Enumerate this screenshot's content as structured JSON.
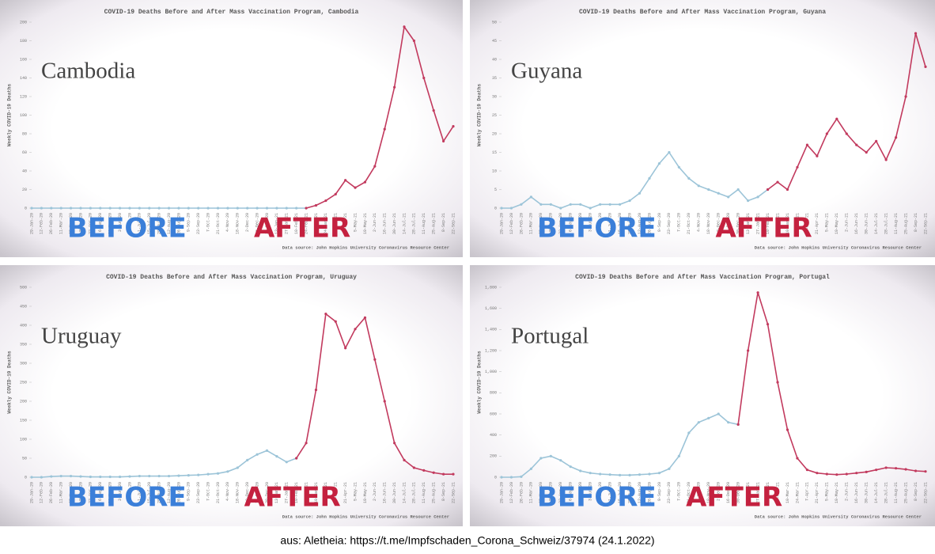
{
  "chart_data": [
    {
      "type": "line",
      "title": "COVID-19 Deaths Before and After Mass Vaccination Program, Cambodia",
      "label": "Cambodia",
      "y_label": "Weekly COVID-19 Deaths",
      "source": "Data source: John Hopkins University Coronavirus Resource Center",
      "annotations": [
        {
          "text": "BEFORE",
          "color": "#3b7fd9"
        },
        {
          "text": "AFTER",
          "color": "#c4213f"
        }
      ],
      "categories": [
        "29-Jan-20",
        "12-Feb-20",
        "26-Feb-20",
        "11-Mar-20",
        "25-Mar-20",
        "8-Apr-20",
        "22-Apr-20",
        "6-May-20",
        "20-May-20",
        "3-Jun-20",
        "17-Jun-20",
        "1-Jul-20",
        "15-Jul-20",
        "29-Jul-20",
        "12-Aug-20",
        "26-Aug-20",
        "9-Sep-20",
        "23-Sep-20",
        "7-Oct-20",
        "21-Oct-20",
        "4-Nov-20",
        "18-Nov-20",
        "2-Dec-20",
        "16-Dec-20",
        "30-Dec-20",
        "13-Jan-21",
        "27-Jan-21",
        "10-Feb-21",
        "24-Feb-21",
        "10-Mar-21",
        "24-Mar-21",
        "7-Apr-21",
        "21-Apr-21",
        "5-May-21",
        "19-May-21",
        "2-Jun-21",
        "16-Jun-21",
        "30-Jun-21",
        "14-Jul-21",
        "28-Jul-21",
        "11-Aug-21",
        "25-Aug-21",
        "8-Sep-21",
        "22-Sep-21"
      ],
      "series": [
        {
          "color": "#9cc4d8",
          "values": [
            0,
            0,
            0,
            0,
            0,
            0,
            0,
            0,
            0,
            0,
            0,
            0,
            0,
            0,
            0,
            0,
            0,
            0,
            0,
            0,
            0,
            0,
            0,
            0,
            0,
            0,
            0,
            0,
            0,
            null,
            null,
            null,
            null,
            null,
            null,
            null,
            null,
            null,
            null,
            null,
            null,
            null,
            null,
            null
          ]
        },
        {
          "color": "#c23a5e",
          "values": [
            null,
            null,
            null,
            null,
            null,
            null,
            null,
            null,
            null,
            null,
            null,
            null,
            null,
            null,
            null,
            null,
            null,
            null,
            null,
            null,
            null,
            null,
            null,
            null,
            null,
            null,
            null,
            null,
            0,
            3,
            8,
            15,
            30,
            22,
            28,
            45,
            85,
            130,
            195,
            180,
            140,
            105,
            72,
            88
          ]
        }
      ],
      "ylim": [
        0,
        200
      ],
      "yticks": [
        0,
        20,
        40,
        60,
        80,
        100,
        120,
        140,
        160,
        180,
        200
      ]
    },
    {
      "type": "line",
      "title": "COVID-19 Deaths Before and After Mass Vaccination Program, Guyana",
      "label": "Guyana",
      "y_label": "Weekly COVID-19 Deaths",
      "source": "Data source: John Hopkins University Coronavirus Resource Center",
      "annotations": [
        {
          "text": "BEFORE",
          "color": "#3b7fd9"
        },
        {
          "text": "AFTER",
          "color": "#c4213f"
        }
      ],
      "categories": [
        "29-Jan-20",
        "12-Feb-20",
        "26-Feb-20",
        "11-Mar-20",
        "25-Mar-20",
        "8-Apr-20",
        "22-Apr-20",
        "6-May-20",
        "20-May-20",
        "3-Jun-20",
        "17-Jun-20",
        "1-Jul-20",
        "15-Jul-20",
        "29-Jul-20",
        "12-Aug-20",
        "26-Aug-20",
        "9-Sep-20",
        "23-Sep-20",
        "7-Oct-20",
        "21-Oct-20",
        "4-Nov-20",
        "18-Nov-20",
        "2-Dec-20",
        "16-Dec-20",
        "30-Dec-20",
        "13-Jan-21",
        "27-Jan-21",
        "10-Feb-21",
        "24-Feb-21",
        "10-Mar-21",
        "24-Mar-21",
        "7-Apr-21",
        "21-Apr-21",
        "5-May-21",
        "19-May-21",
        "2-Jun-21",
        "16-Jun-21",
        "30-Jun-21",
        "14-Jul-21",
        "28-Jul-21",
        "11-Aug-21",
        "25-Aug-21",
        "8-Sep-21",
        "22-Sep-21"
      ],
      "series": [
        {
          "color": "#9cc4d8",
          "values": [
            0,
            0,
            1,
            3,
            1,
            1,
            0,
            1,
            1,
            0,
            1,
            1,
            1,
            2,
            4,
            8,
            12,
            15,
            11,
            8,
            6,
            5,
            4,
            3,
            5,
            2,
            3,
            5,
            null,
            null,
            null,
            null,
            null,
            null,
            null,
            null,
            null,
            null,
            null,
            null,
            null,
            null,
            null,
            null
          ]
        },
        {
          "color": "#c23a5e",
          "values": [
            null,
            null,
            null,
            null,
            null,
            null,
            null,
            null,
            null,
            null,
            null,
            null,
            null,
            null,
            null,
            null,
            null,
            null,
            null,
            null,
            null,
            null,
            null,
            null,
            null,
            null,
            null,
            5,
            7,
            5,
            11,
            17,
            14,
            20,
            24,
            20,
            17,
            15,
            18,
            13,
            19,
            30,
            47,
            38
          ]
        }
      ],
      "ylim": [
        0,
        50
      ],
      "yticks": [
        0,
        5,
        10,
        15,
        20,
        25,
        30,
        35,
        40,
        45,
        50
      ]
    },
    {
      "type": "line",
      "title": "COVID-19 Deaths Before and After Mass Vaccination Program, Uruguay",
      "label": "Uruguay",
      "y_label": "Weekly COVID-19 Deaths",
      "source": "Data source: John Hopkins University Coronavirus Resource Center",
      "annotations": [
        {
          "text": "BEFORE",
          "color": "#3b7fd9"
        },
        {
          "text": "AFTER",
          "color": "#c4213f"
        }
      ],
      "categories": [
        "29-Jan-20",
        "12-Feb-20",
        "26-Feb-20",
        "11-Mar-20",
        "25-Mar-20",
        "8-Apr-20",
        "22-Apr-20",
        "6-May-20",
        "20-May-20",
        "3-Jun-20",
        "17-Jun-20",
        "1-Jul-20",
        "15-Jul-20",
        "29-Jul-20",
        "12-Aug-20",
        "26-Aug-20",
        "9-Sep-20",
        "23-Sep-20",
        "7-Oct-20",
        "21-Oct-20",
        "4-Nov-20",
        "18-Nov-20",
        "2-Dec-20",
        "16-Dec-20",
        "30-Dec-20",
        "13-Jan-21",
        "27-Jan-21",
        "10-Feb-21",
        "24-Feb-21",
        "10-Mar-21",
        "24-Mar-21",
        "7-Apr-21",
        "21-Apr-21",
        "5-May-21",
        "19-May-21",
        "2-Jun-21",
        "16-Jun-21",
        "30-Jun-21",
        "14-Jul-21",
        "28-Jul-21",
        "11-Aug-21",
        "25-Aug-21",
        "8-Sep-21",
        "22-Sep-21"
      ],
      "series": [
        {
          "color": "#9cc4d8",
          "values": [
            0,
            0,
            2,
            3,
            3,
            2,
            1,
            1,
            1,
            1,
            2,
            3,
            3,
            3,
            3,
            4,
            5,
            6,
            8,
            10,
            15,
            25,
            45,
            60,
            70,
            55,
            40,
            50,
            null,
            null,
            null,
            null,
            null,
            null,
            null,
            null,
            null,
            null,
            null,
            null,
            null,
            null,
            null,
            null
          ]
        },
        {
          "color": "#c23a5e",
          "values": [
            null,
            null,
            null,
            null,
            null,
            null,
            null,
            null,
            null,
            null,
            null,
            null,
            null,
            null,
            null,
            null,
            null,
            null,
            null,
            null,
            null,
            null,
            null,
            null,
            null,
            null,
            null,
            50,
            90,
            230,
            430,
            410,
            340,
            390,
            420,
            310,
            200,
            90,
            45,
            25,
            18,
            12,
            8,
            8
          ]
        }
      ],
      "ylim": [
        0,
        500
      ],
      "yticks": [
        0,
        50,
        100,
        150,
        200,
        250,
        300,
        350,
        400,
        450,
        500
      ]
    },
    {
      "type": "line",
      "title": "COVID-19 Deaths Before and After Mass Vaccination Program, Portugal",
      "label": "Portugal",
      "y_label": "Weekly COVID-19 Deaths",
      "source": "Data source: John Hopkins University Coronavirus Resource Center",
      "annotations": [
        {
          "text": "BEFORE",
          "color": "#3b7fd9"
        },
        {
          "text": "AFTER",
          "color": "#c4213f"
        }
      ],
      "categories": [
        "29-Jan-20",
        "12-Feb-20",
        "26-Feb-20",
        "11-Mar-20",
        "25-Mar-20",
        "8-Apr-20",
        "22-Apr-20",
        "6-May-20",
        "20-May-20",
        "3-Jun-20",
        "17-Jun-20",
        "1-Jul-20",
        "15-Jul-20",
        "29-Jul-20",
        "12-Aug-20",
        "26-Aug-20",
        "9-Sep-20",
        "23-Sep-20",
        "7-Oct-20",
        "21-Oct-20",
        "4-Nov-20",
        "18-Nov-20",
        "2-Dec-20",
        "16-Dec-20",
        "30-Dec-20",
        "13-Jan-21",
        "27-Jan-21",
        "10-Feb-21",
        "24-Feb-21",
        "10-Mar-21",
        "24-Mar-21",
        "7-Apr-21",
        "21-Apr-21",
        "5-May-21",
        "19-May-21",
        "2-Jun-21",
        "16-Jun-21",
        "30-Jun-21",
        "14-Jul-21",
        "28-Jul-21",
        "11-Aug-21",
        "25-Aug-21",
        "8-Sep-21",
        "22-Sep-21"
      ],
      "series": [
        {
          "color": "#9cc4d8",
          "values": [
            0,
            0,
            5,
            80,
            180,
            200,
            160,
            100,
            60,
            40,
            30,
            25,
            20,
            20,
            25,
            30,
            40,
            80,
            200,
            420,
            520,
            560,
            600,
            520,
            500,
            null,
            null,
            null,
            null,
            null,
            null,
            null,
            null,
            null,
            null,
            null,
            null,
            null,
            null,
            null,
            null,
            null,
            null,
            null
          ]
        },
        {
          "color": "#c23a5e",
          "values": [
            null,
            null,
            null,
            null,
            null,
            null,
            null,
            null,
            null,
            null,
            null,
            null,
            null,
            null,
            null,
            null,
            null,
            null,
            null,
            null,
            null,
            null,
            null,
            null,
            500,
            1200,
            1750,
            1450,
            900,
            450,
            180,
            70,
            40,
            30,
            25,
            30,
            40,
            50,
            70,
            90,
            85,
            75,
            60,
            55
          ]
        }
      ],
      "ylim": [
        0,
        1800
      ],
      "yticks": [
        0,
        200,
        400,
        600,
        800,
        {
          "value": 1000,
          "label": "1,000"
        },
        {
          "value": 1200,
          "label": "1,200"
        },
        {
          "value": 1400,
          "label": "1,400"
        },
        {
          "value": 1600,
          "label": "1,600"
        },
        {
          "value": 1800,
          "label": "1,800"
        }
      ]
    }
  ],
  "caption": "aus: Aletheia: https://t.me/Impfschaden_Corona_Schweiz/37974 (24.1.2022)"
}
